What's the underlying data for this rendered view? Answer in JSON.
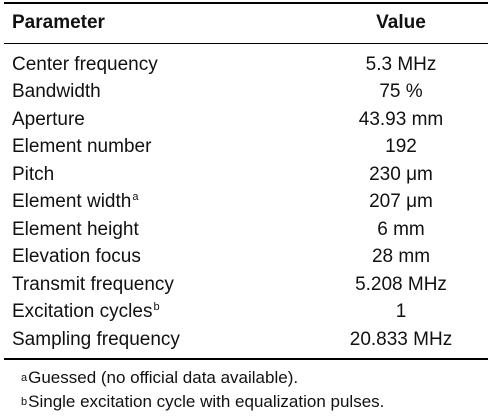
{
  "table": {
    "headers": {
      "parameter": "Parameter",
      "value": "Value"
    },
    "rows": [
      {
        "parameter": "Center frequency",
        "marker": "",
        "value": "5.3 MHz"
      },
      {
        "parameter": "Bandwidth",
        "marker": "",
        "value": "75 %"
      },
      {
        "parameter": "Aperture",
        "marker": "",
        "value": "43.93 mm"
      },
      {
        "parameter": "Element number",
        "marker": "",
        "value": "192"
      },
      {
        "parameter": "Pitch",
        "marker": "",
        "value": "230 μm"
      },
      {
        "parameter": "Element width",
        "marker": "a",
        "value": "207 μm"
      },
      {
        "parameter": "Element height",
        "marker": "",
        "value": "6 mm"
      },
      {
        "parameter": "Elevation focus",
        "marker": "",
        "value": "28 mm"
      },
      {
        "parameter": "Transmit frequency",
        "marker": "",
        "value": "5.208 MHz"
      },
      {
        "parameter": "Excitation cycles",
        "marker": "b",
        "value": "1"
      },
      {
        "parameter": "Sampling frequency",
        "marker": "",
        "value": "20.833 MHz"
      }
    ]
  },
  "footnotes": [
    {
      "marker": "a",
      "text": "Guessed (no official data available)."
    },
    {
      "marker": "b",
      "text": "Single excitation cycle with equalization pulses."
    }
  ]
}
